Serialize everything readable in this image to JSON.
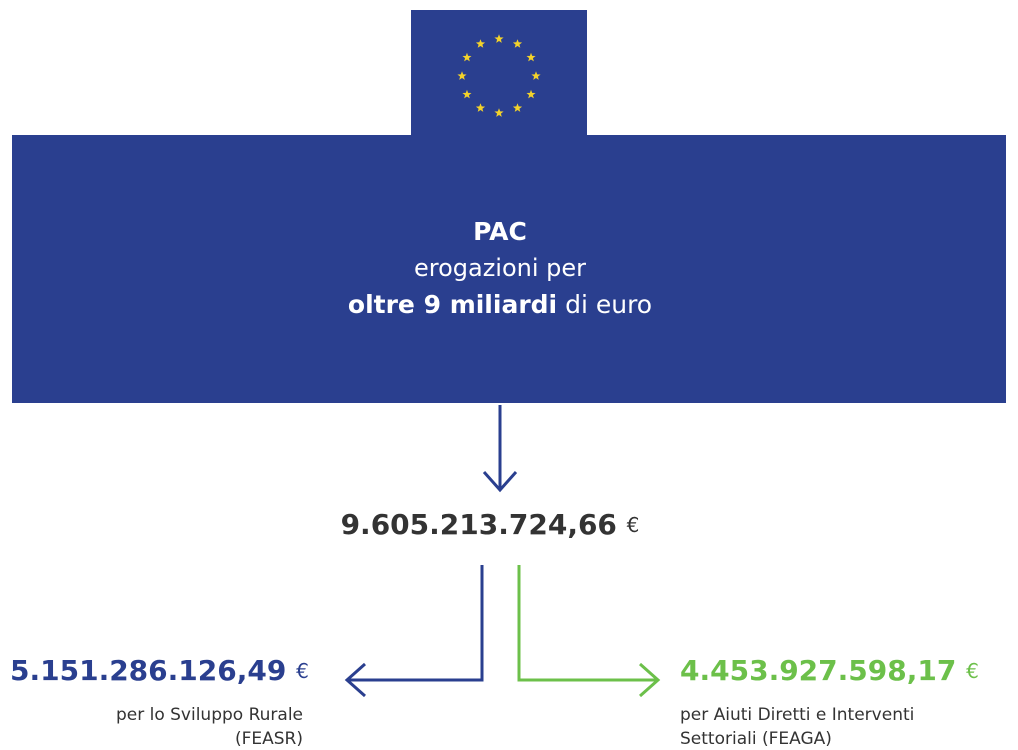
{
  "header": {
    "title": "PAC",
    "subtitle": "erogazioni per",
    "highlight": "oltre 9 miliardi",
    "suffix": "di euro"
  },
  "total": {
    "amount": "9.605.213.724,66",
    "currency": "€"
  },
  "left": {
    "amount": "5.151.286.126,49",
    "currency": "€",
    "label": [
      "per lo Sviluppo Rurale",
      "(FEASR)"
    ]
  },
  "right": {
    "amount": "4.453.927.598,17",
    "currency": "€",
    "label": [
      "per Aiuti Diretti e Interventi",
      "Settoriali (FEAGA)"
    ]
  }
}
